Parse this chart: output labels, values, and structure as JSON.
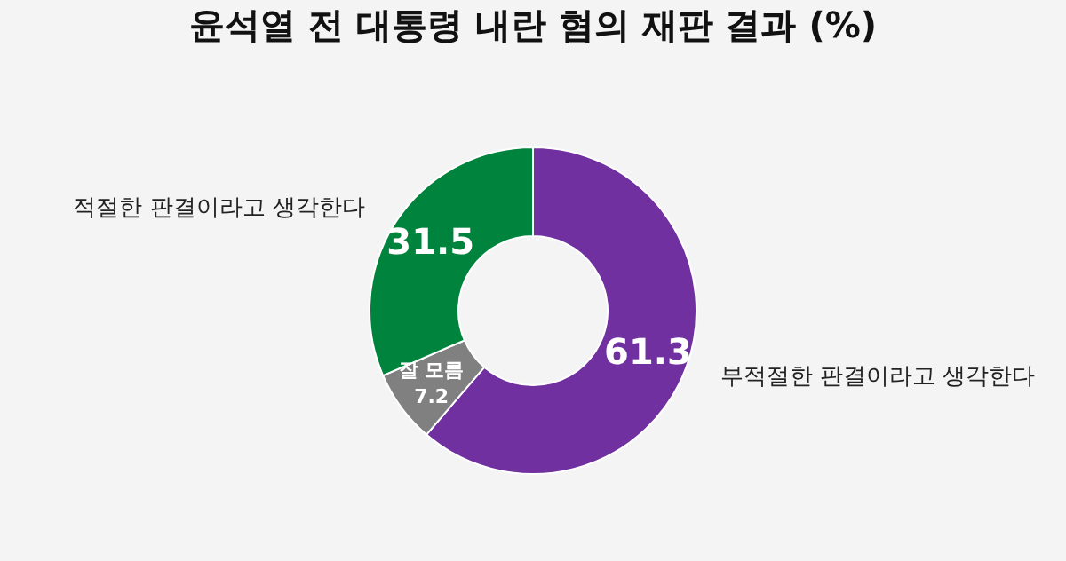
{
  "chart_data": {
    "type": "donut",
    "title": "윤석열 전 대통령 내란 혐의 재판 결과 (%)",
    "categories": [
      "부적절한 판결이라고 생각한다",
      "잘 모름",
      "적절한 판결이라고 생각한다"
    ],
    "values": [
      61.3,
      7.2,
      31.5
    ],
    "colors": [
      "#7030a0",
      "#808080",
      "#00843d"
    ],
    "data_labels": true,
    "legend": false
  }
}
